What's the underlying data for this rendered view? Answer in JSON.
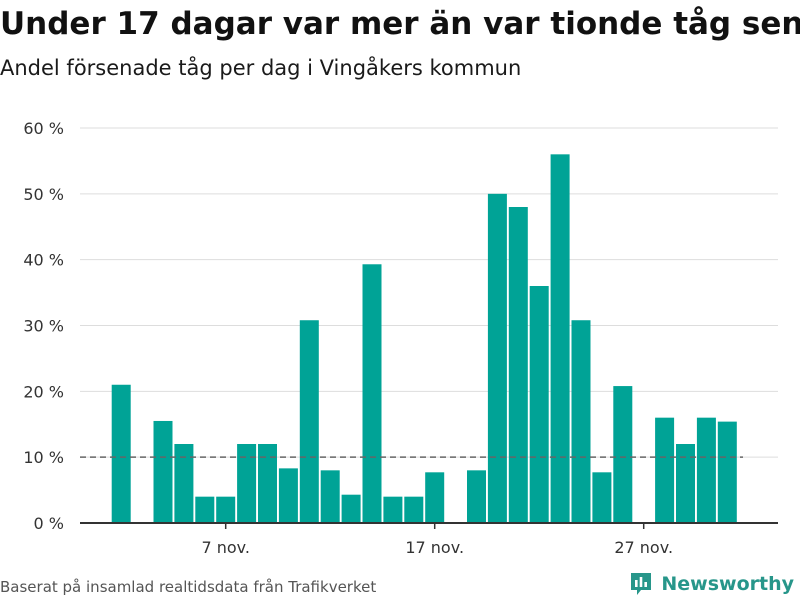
{
  "header": {
    "title": "Under 17 dagar var mer än var tionde tåg sent",
    "subtitle": "Andel försenade tåg per dag i Vingåkers kommun"
  },
  "footer": {
    "source": "Baserat på insamlad realtidsdata från Trafikverket",
    "brand": "Newsworthy"
  },
  "colors": {
    "bar": "#00a396",
    "grid": "#dddddd",
    "axis": "#333333",
    "reference_line": "#666666",
    "brand": "#27968a"
  },
  "chart_data": {
    "type": "bar",
    "title": "Under 17 dagar var mer än var tionde tåg sent",
    "subtitle": "Andel försenade tåg per dag i Vingåkers kommun",
    "xlabel": "",
    "ylabel": "",
    "x_start_date": "2023-11-01",
    "x_unit": "day",
    "values": [
      null,
      21,
      null,
      15.5,
      12,
      4,
      4,
      12,
      12,
      8.3,
      30.8,
      8,
      4.3,
      39.3,
      4,
      4,
      7.7,
      null,
      8,
      50,
      48,
      36,
      56,
      30.8,
      7.7,
      20.8,
      null,
      16,
      12,
      16,
      15.4
    ],
    "ylim": [
      0,
      60
    ],
    "yticks": [
      0,
      10,
      20,
      30,
      40,
      50,
      60
    ],
    "ytick_labels": [
      "0 %",
      "10 %",
      "20 %",
      "30 %",
      "40 %",
      "50 %",
      "60 %"
    ],
    "xticks": [
      {
        "index": 6,
        "label": "7 nov."
      },
      {
        "index": 16,
        "label": "17 nov."
      },
      {
        "index": 26,
        "label": "27 nov."
      }
    ],
    "reference_line": {
      "value": 10,
      "style": "dashed"
    },
    "grid": true,
    "legend": "none"
  }
}
